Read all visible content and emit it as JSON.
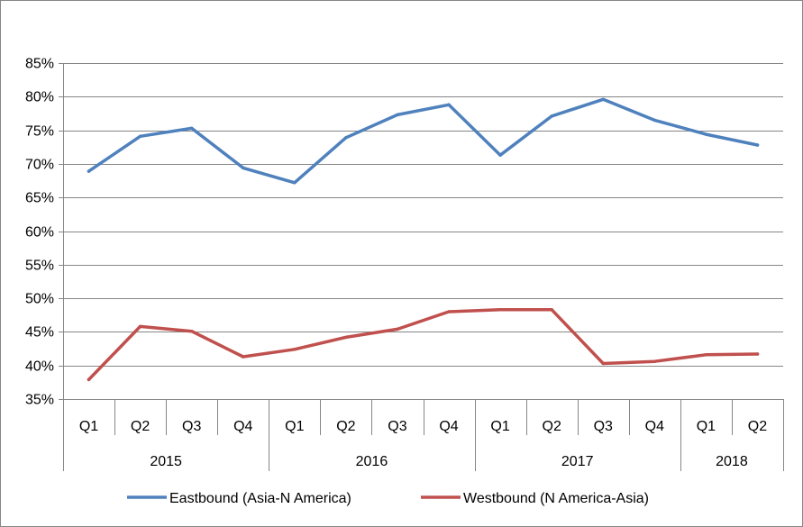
{
  "chart_data": {
    "type": "line",
    "title": "",
    "xlabel": "",
    "ylabel": "",
    "ylim": [
      0.35,
      0.85
    ],
    "y_tick_step": 0.05,
    "y_ticks": [
      "35%",
      "40%",
      "45%",
      "50%",
      "55%",
      "60%",
      "65%",
      "70%",
      "75%",
      "80%",
      "85%"
    ],
    "grid": "horizontal",
    "legend_position": "bottom",
    "categories": [
      "Q1",
      "Q2",
      "Q3",
      "Q4",
      "Q1",
      "Q2",
      "Q3",
      "Q4",
      "Q1",
      "Q2",
      "Q3",
      "Q4",
      "Q1",
      "Q2"
    ],
    "year_groups": [
      {
        "label": "2015",
        "count": 4
      },
      {
        "label": "2016",
        "count": 4
      },
      {
        "label": "2017",
        "count": 4
      },
      {
        "label": "2018",
        "count": 2
      }
    ],
    "series": [
      {
        "name": "Eastbound (Asia-N America)",
        "color": "#4F81BD",
        "values": [
          0.689,
          0.741,
          0.753,
          0.694,
          0.672,
          0.739,
          0.773,
          0.788,
          0.713,
          0.771,
          0.796,
          0.765,
          0.744,
          0.728
        ]
      },
      {
        "name": "Westbound (N America-Asia)",
        "color": "#C0504D",
        "values": [
          0.379,
          0.458,
          0.451,
          0.413,
          0.424,
          0.442,
          0.454,
          0.48,
          0.483,
          0.483,
          0.403,
          0.406,
          0.416,
          0.417
        ]
      }
    ]
  }
}
